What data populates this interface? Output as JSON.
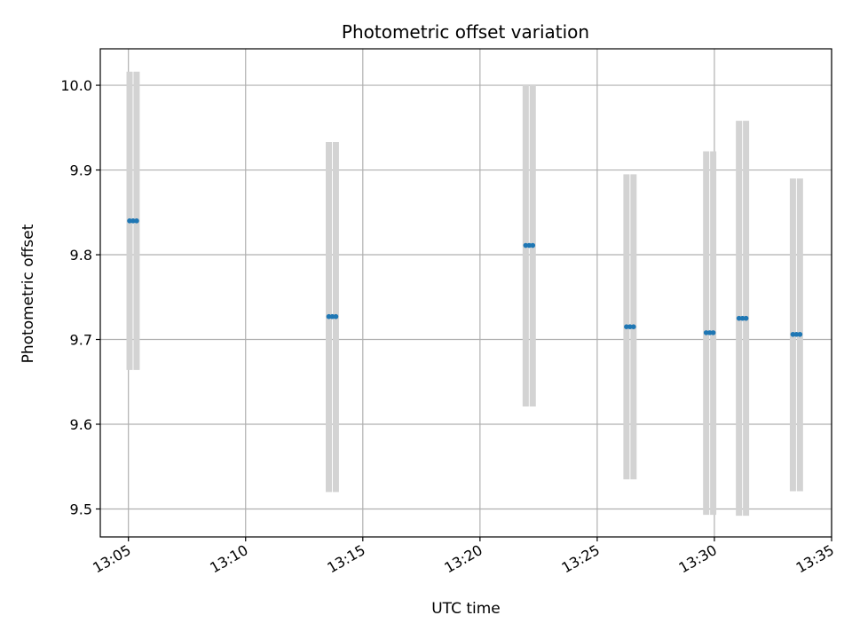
{
  "chart_data": {
    "type": "scatter",
    "title": "Photometric offset variation",
    "xlabel": "UTC time",
    "ylabel": "Photometric offset",
    "x_tick_labels": [
      "13:05",
      "13:10",
      "13:15",
      "13:20",
      "13:25",
      "13:30",
      "13:35"
    ],
    "y_tick_labels": [
      "9.5",
      "9.6",
      "9.7",
      "9.8",
      "9.9",
      "10.0"
    ],
    "y_ticks": [
      9.5,
      9.6,
      9.7,
      9.8,
      9.9,
      10.0
    ],
    "x_ticks_minutes": [
      5,
      10,
      15,
      20,
      25,
      30,
      35
    ],
    "xlim_minutes_past_1300": [
      3.8,
      35.0
    ],
    "ylim": [
      9.467,
      10.043
    ],
    "grid": true,
    "colors": {
      "points": "#1f77b4",
      "error_bars": "#d3d3d3",
      "grid": "#b0b0b0"
    },
    "series": [
      {
        "points": [
          {
            "minute_past_1300": 5.2,
            "pair_spread": 0.3,
            "y": 9.84,
            "low": 9.664,
            "high": 10.016
          },
          {
            "minute_past_1300": 13.7,
            "pair_spread": 0.3,
            "y": 9.727,
            "low": 9.52,
            "high": 9.933
          },
          {
            "minute_past_1300": 22.1,
            "pair_spread": 0.3,
            "y": 9.811,
            "low": 9.621,
            "high": 10.0
          },
          {
            "minute_past_1300": 26.4,
            "pair_spread": 0.3,
            "y": 9.715,
            "low": 9.535,
            "high": 9.895
          },
          {
            "minute_past_1300": 29.8,
            "pair_spread": 0.3,
            "y": 9.708,
            "low": 9.493,
            "high": 9.922
          },
          {
            "minute_past_1300": 31.2,
            "pair_spread": 0.3,
            "y": 9.725,
            "low": 9.492,
            "high": 9.958
          },
          {
            "minute_past_1300": 33.5,
            "pair_spread": 0.3,
            "y": 9.706,
            "low": 9.521,
            "high": 9.89
          }
        ]
      }
    ]
  }
}
